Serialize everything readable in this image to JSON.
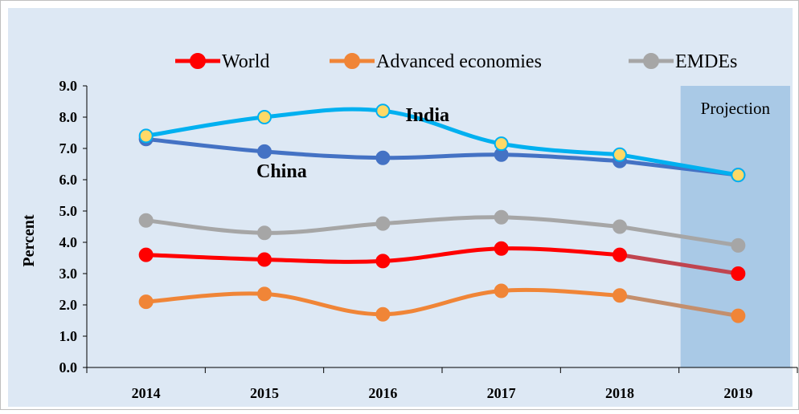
{
  "chart_data": {
    "type": "line",
    "categories": [
      "2014",
      "2015",
      "2016",
      "2017",
      "2018",
      "2019"
    ],
    "ylabel": "Percent",
    "ylim": [
      0,
      9
    ],
    "yticks": [
      "0.0",
      "1.0",
      "2.0",
      "3.0",
      "4.0",
      "5.0",
      "6.0",
      "7.0",
      "8.0",
      "9.0"
    ],
    "projection_label": "Projection",
    "projection_from": "2019",
    "grid": false,
    "legend_position": "top",
    "background_color": "#dde8f4",
    "projection_color": "#a9c9e6",
    "series": [
      {
        "name": "World",
        "color": "#ff0000",
        "projection_color": "#c0444f",
        "values": [
          3.6,
          3.45,
          3.4,
          3.8,
          3.6,
          3.0
        ],
        "in_legend": true
      },
      {
        "name": "Advanced economies",
        "color": "#f08537",
        "projection_color": "#c48f6d",
        "values": [
          2.1,
          2.35,
          1.7,
          2.45,
          2.3,
          1.65
        ],
        "in_legend": true
      },
      {
        "name": "EMDEs",
        "color": "#a6a6a6",
        "projection_color": "#a6a6a6",
        "values": [
          4.7,
          4.3,
          4.6,
          4.8,
          4.5,
          3.9
        ],
        "in_legend": true
      },
      {
        "label": "China",
        "color": "#4472c4",
        "projection_color": "#4472c4",
        "values": [
          7.3,
          6.9,
          6.7,
          6.8,
          6.6,
          6.15
        ],
        "in_legend": false
      },
      {
        "label": "India",
        "color": "#00b0f0",
        "projection_color": "#00b0f0",
        "marker_fill": "#ffd966",
        "values": [
          7.4,
          8.0,
          8.2,
          7.15,
          6.8,
          6.15
        ],
        "in_legend": false
      }
    ],
    "annotations": [
      {
        "text": "India",
        "series": "India"
      },
      {
        "text": "China",
        "series": "China"
      }
    ]
  }
}
